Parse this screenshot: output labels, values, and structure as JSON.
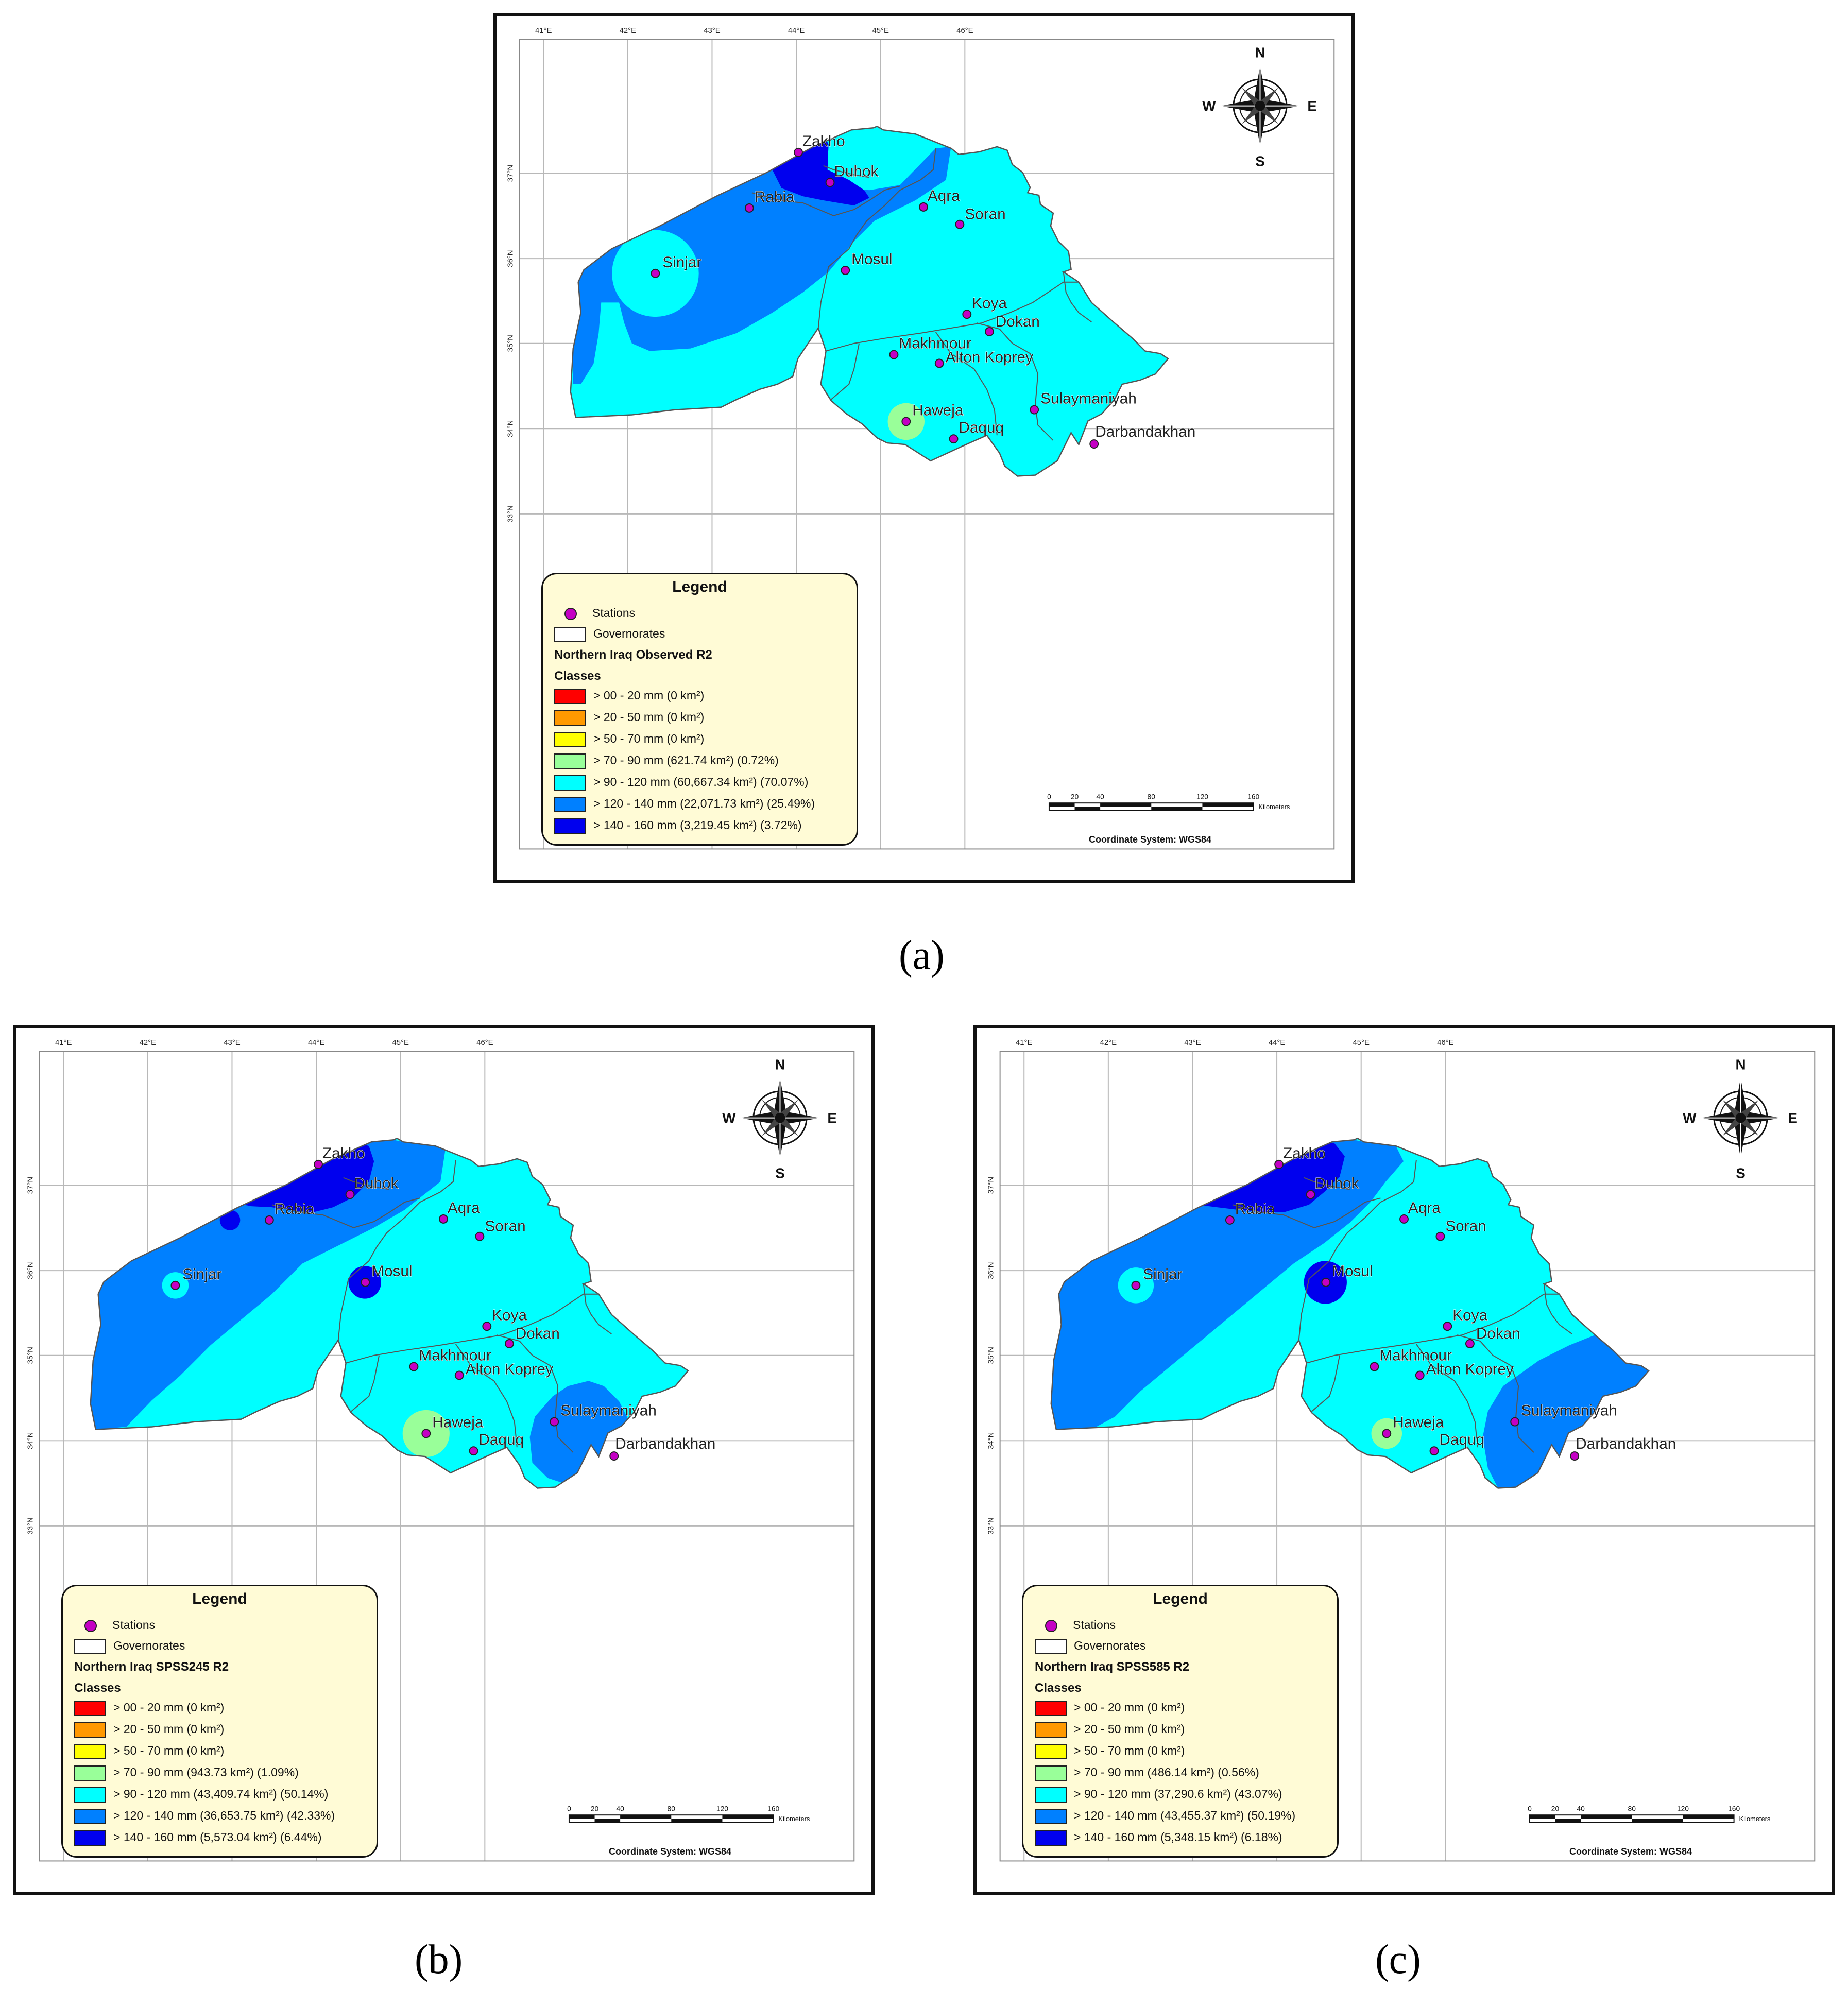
{
  "captions": [
    "(a)",
    "(b)",
    "(c)"
  ],
  "longitudes": [
    "41°E",
    "42°E",
    "43°E",
    "44°E",
    "45°E",
    "46°E"
  ],
  "latitudes": [
    "37°N",
    "36°N",
    "35°N",
    "34°N",
    "33°N"
  ],
  "compass": {
    "n": "N",
    "s": "S",
    "e": "E",
    "w": "W"
  },
  "stations": [
    "Zakho",
    "Duhok",
    "Rabia",
    "Aqra",
    "Soran",
    "Sinjar",
    "Mosul",
    "Koya",
    "Dokan",
    "Makhmour",
    "Alton Koprey",
    "Haweja",
    "Daquq",
    "Sulaymaniyah",
    "Darbandakhan"
  ],
  "scale": {
    "ticks": [
      "0",
      "20",
      "40",
      "80",
      "120",
      "160"
    ],
    "unit": "Kilometers"
  },
  "coordinate_system": "Coordinate System: WGS84",
  "legend": {
    "title": "Legend",
    "stations_label": "Stations",
    "governorates_label": "Governorates",
    "classes_label": "Classes"
  },
  "colors": {
    "class_00_20": "#ff0000",
    "class_20_50": "#ff9900",
    "class_50_70": "#ffff00",
    "class_70_90": "#99ff99",
    "class_90_120": "#00ffff",
    "class_120_140": "#0080ff",
    "class_140_160": "#0000ee",
    "station": "#c400c4",
    "legend_bg": "#fffbd6"
  },
  "panels": [
    {
      "id": "a",
      "map_title": "Northern Iraq Observed R2",
      "classes": [
        "> 00 - 20 mm (0 km²)",
        "> 20 - 50 mm (0 km²)",
        "> 50 - 70 mm (0 km²)",
        "> 70 - 90 mm (621.74 km²) (0.72%)",
        "> 90 - 120 mm (60,667.34 km²) (70.07%)",
        "> 120 - 140 mm (22,071.73 km²) (25.49%)",
        "> 140 - 160 mm (3,219.45 km²) (3.72%)"
      ]
    },
    {
      "id": "b",
      "map_title": "Northern Iraq SPSS245 R2",
      "classes": [
        "> 00 - 20 mm (0 km²)",
        "> 20 - 50 mm (0 km²)",
        "> 50 - 70 mm (0 km²)",
        "> 70 - 90 mm (943.73 km²) (1.09%)",
        "> 90 - 120 mm (43,409.74 km²) (50.14%)",
        "> 120 - 140 mm (36,653.75 km²) (42.33%)",
        "> 140 - 160 mm (5,573.04 km²) (6.44%)"
      ]
    },
    {
      "id": "c",
      "map_title": "Northern Iraq SPSS585 R2",
      "classes": [
        "> 00 - 20 mm (0 km²)",
        "> 20 - 50 mm (0 km²)",
        "> 50 - 70 mm (0 km²)",
        "> 70 - 90 mm (486.14 km²) (0.56%)",
        "> 90 - 120 mm (37,290.6 km²) (43.07%)",
        "> 120 - 140 mm (43,455.37 km²) (50.19%)",
        "> 140 - 160 mm (5,348.15 km²) (6.18%)"
      ]
    }
  ]
}
